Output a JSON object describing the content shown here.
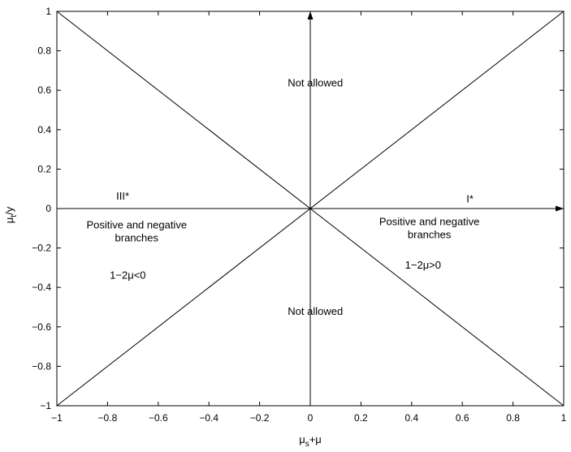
{
  "chart_data": {
    "type": "line",
    "title": "",
    "xlabel": {
      "base": "μ",
      "sub": "s",
      "tail": "+μ"
    },
    "ylabel": {
      "base": "μ",
      "sub": "t",
      "tail": "/y"
    },
    "xlim": [
      -1,
      1
    ],
    "ylim": [
      -1,
      1
    ],
    "grid": false,
    "xticks": [
      -1,
      -0.8,
      -0.6,
      -0.4,
      -0.2,
      0,
      0.2,
      0.4,
      0.6,
      0.8,
      1
    ],
    "yticks": [
      -1,
      -0.8,
      -0.6,
      -0.4,
      -0.2,
      0,
      0.2,
      0.4,
      0.6,
      0.8,
      1
    ],
    "xtick_labels": [
      "−1",
      "−0.8",
      "−0.6",
      "−0.4",
      "−0.2",
      "0",
      "0.2",
      "0.4",
      "0.6",
      "0.8",
      "1"
    ],
    "ytick_labels": [
      "−1",
      "−0.8",
      "−0.6",
      "−0.4",
      "−0.2",
      "0",
      "0.2",
      "0.4",
      "0.6",
      "0.8",
      "1"
    ],
    "series": [
      {
        "x": [
          -1,
          1
        ],
        "y": [
          -1,
          1
        ]
      },
      {
        "x": [
          -1,
          1
        ],
        "y": [
          1,
          -1
        ]
      }
    ],
    "arrows": [
      {
        "from": [
          0,
          -1
        ],
        "to": [
          0,
          1
        ]
      },
      {
        "from": [
          -1,
          0
        ],
        "to": [
          1,
          0
        ]
      }
    ],
    "annotations": [
      {
        "x": 0.02,
        "y": 0.62,
        "lines": [
          "Not allowed"
        ]
      },
      {
        "x": 0.02,
        "y": -0.54,
        "lines": [
          "Not allowed"
        ]
      },
      {
        "x": -0.74,
        "y": 0.045,
        "lines": [
          "III*"
        ]
      },
      {
        "x": 0.63,
        "y": 0.03,
        "lines": [
          "I*"
        ]
      },
      {
        "x": -0.685,
        "y": -0.1,
        "lines": [
          "Positive and negative",
          "branches"
        ]
      },
      {
        "x": 0.47,
        "y": -0.085,
        "lines": [
          "Positive and negative",
          "branches"
        ]
      },
      {
        "x": -0.72,
        "y": -0.355,
        "lines": [
          "1−2μ<0"
        ]
      },
      {
        "x": 0.445,
        "y": -0.305,
        "lines": [
          "1−2μ>0"
        ]
      }
    ]
  }
}
